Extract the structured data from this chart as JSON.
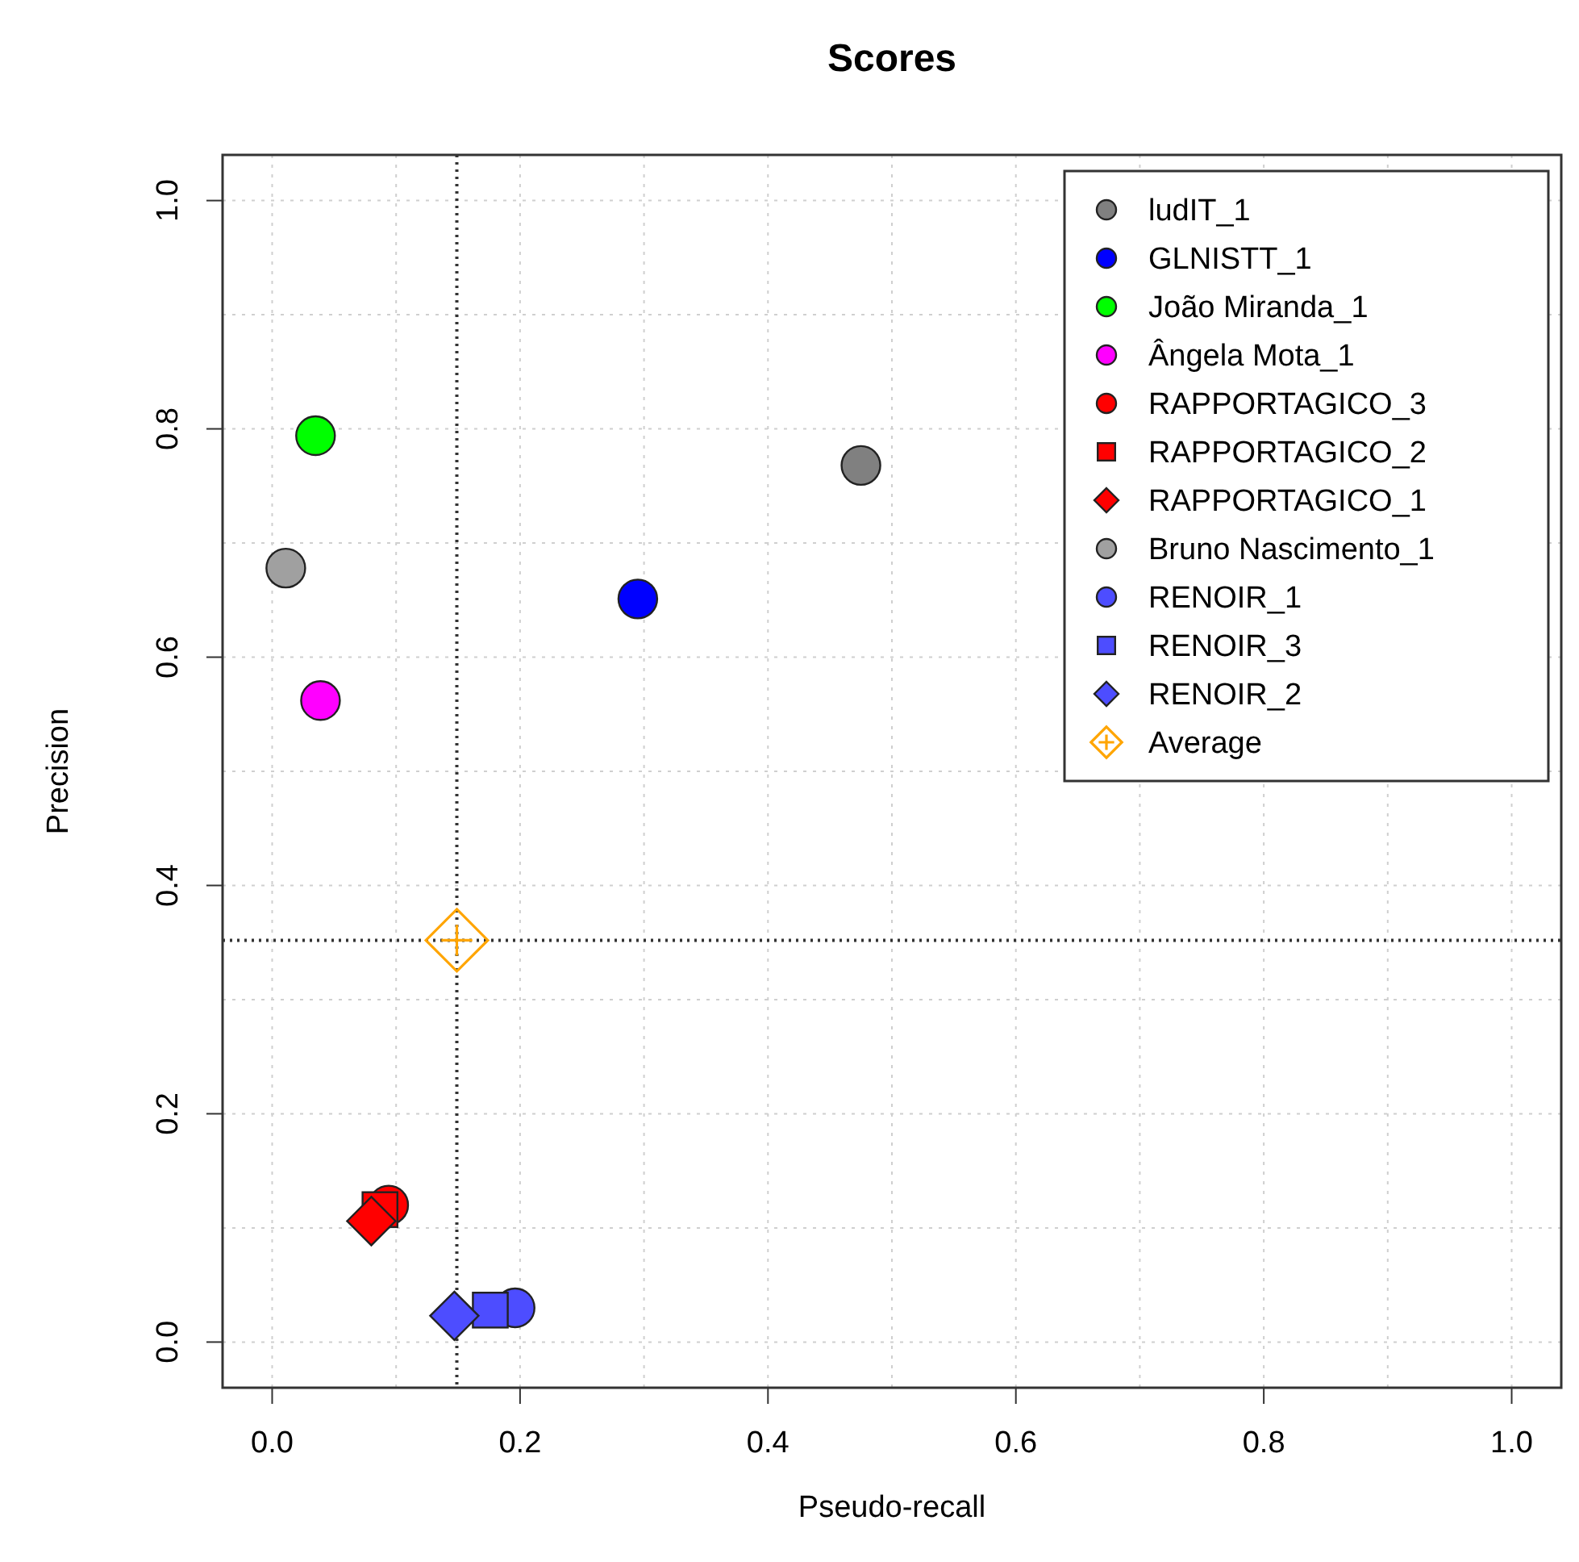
{
  "chart_data": {
    "type": "scatter",
    "title": "Scores",
    "xlabel": "Pseudo-recall",
    "ylabel": "Precision",
    "xlim": [
      -0.04,
      1.04
    ],
    "ylim": [
      -0.04,
      1.04
    ],
    "xticks": [
      {
        "value": 0,
        "label": "0.0"
      },
      0.2,
      0.4,
      0.6,
      0.8,
      {
        "value": 1,
        "label": "1.0"
      }
    ],
    "yticks": [
      {
        "value": 0,
        "label": "0.0"
      },
      0.2,
      0.4,
      0.6,
      0.8,
      {
        "value": 1,
        "label": "1.0"
      }
    ],
    "grid": true,
    "legend": "top right",
    "series": [
      {
        "name": "ludIT_1",
        "color": "#808080",
        "marker": "circle",
        "x": [
          0.475
        ],
        "values": [
          0.768
        ]
      },
      {
        "name": "GLNISTT_1",
        "color": "#0000ff",
        "marker": "circle",
        "x": [
          0.295
        ],
        "values": [
          0.651
        ]
      },
      {
        "name": "João Miranda_1",
        "color": "#00ff00",
        "marker": "circle",
        "x": [
          0.035
        ],
        "values": [
          0.794
        ]
      },
      {
        "name": "Ângela Mota_1",
        "color": "#ff00ff",
        "marker": "circle",
        "x": [
          0.039
        ],
        "values": [
          0.562
        ]
      },
      {
        "name": "RAPPORTAGICO_3",
        "color": "#ff0000",
        "marker": "circle",
        "x": [
          0.094
        ],
        "values": [
          0.12
        ]
      },
      {
        "name": "RAPPORTAGICO_2",
        "color": "#ff0000",
        "marker": "square",
        "x": [
          0.087
        ],
        "values": [
          0.116
        ]
      },
      {
        "name": "RAPPORTAGICO_1",
        "color": "#ff0000",
        "marker": "diamond",
        "x": [
          0.08
        ],
        "values": [
          0.106
        ]
      },
      {
        "name": "Bruno Nascimento_1",
        "color": "#a0a0a0",
        "marker": "circle",
        "x": [
          0.011
        ],
        "values": [
          0.678
        ]
      },
      {
        "name": "RENOIR_1",
        "color": "#4d4dff",
        "marker": "circle",
        "x": [
          0.196
        ],
        "values": [
          0.03
        ]
      },
      {
        "name": "RENOIR_3",
        "color": "#4d4dff",
        "marker": "square",
        "x": [
          0.176
        ],
        "values": [
          0.028
        ]
      },
      {
        "name": "RENOIR_2",
        "color": "#4d4dff",
        "marker": "diamond",
        "x": [
          0.147
        ],
        "values": [
          0.023
        ]
      },
      {
        "name": "Average",
        "color": "#ffa500",
        "marker": "cross",
        "x": [
          0.149
        ],
        "values": [
          0.352
        ]
      }
    ],
    "ref_lines": [
      {
        "axis": "x",
        "value": 0.149,
        "color": "#333333",
        "line_style": "dotted"
      },
      {
        "axis": "y",
        "value": 0.352,
        "color": "#333333",
        "line_style": "dotted"
      }
    ]
  }
}
